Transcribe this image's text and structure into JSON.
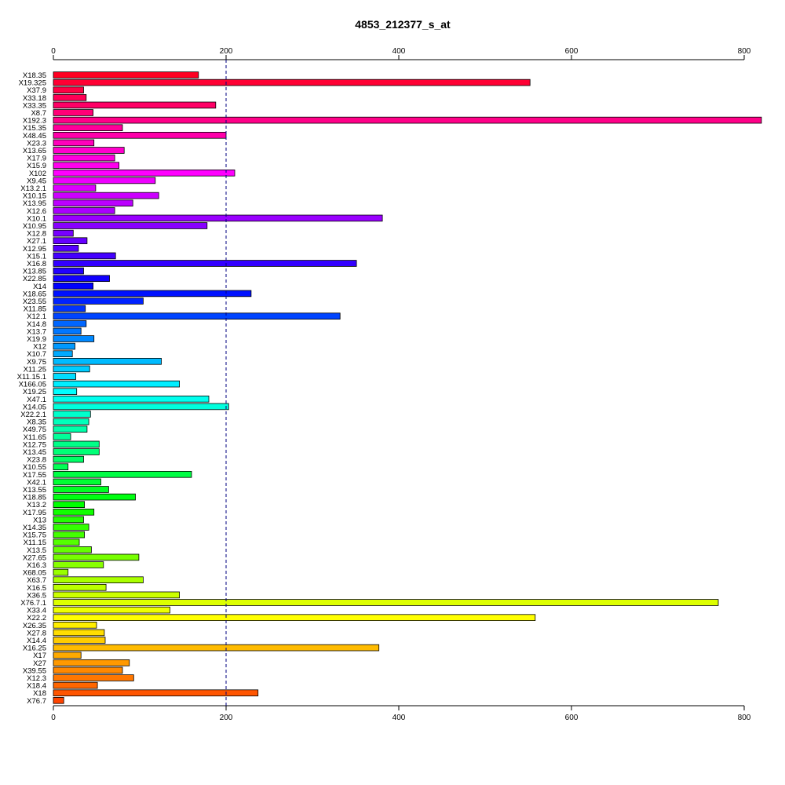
{
  "chart_data": {
    "type": "bar",
    "orientation": "horizontal",
    "title": "4853_212377_s_at",
    "xlabel": "",
    "ylabel": "",
    "xlim": [
      0,
      820
    ],
    "x_ticks": [
      0,
      200,
      400,
      600,
      800
    ],
    "x_tick_labels": [
      "0",
      "200",
      "400",
      "600",
      "800"
    ],
    "axes": [
      "top",
      "bottom"
    ],
    "reference_line": {
      "x": 200,
      "style": "dashed",
      "color": "#000080"
    },
    "categories": [
      "X18.35",
      "X19.325",
      "X37.9",
      "X33.18",
      "X33.35",
      "X8.7",
      "X192.3",
      "X15.35",
      "X48.45",
      "X23.3",
      "X13.65",
      "X17.9",
      "X15.9",
      "X102",
      "X9.45",
      "X13.2.1",
      "X10.15",
      "X13.95",
      "X12.6",
      "X10.1",
      "X10.95",
      "X12.8",
      "X27.1",
      "X12.95",
      "X15.1",
      "X16.8",
      "X13.85",
      "X22.85",
      "X14",
      "X18.65",
      "X23.55",
      "X11.85",
      "X12.1",
      "X14.8",
      "X13.7",
      "X19.9",
      "X12",
      "X10.7",
      "X9.75",
      "X11.25",
      "X11.15.1",
      "X166.05",
      "X19.25",
      "X47.1",
      "X14.05",
      "X22.2.1",
      "X8.35",
      "X49.75",
      "X11.65",
      "X12.75",
      "X13.45",
      "X23.8",
      "X10.55",
      "X17.55",
      "X42.1",
      "X13.55",
      "X18.85",
      "X13.2",
      "X17.95",
      "X13",
      "X14.35",
      "X15.75",
      "X11.15",
      "X13.5",
      "X27.65",
      "X16.3",
      "X68.05",
      "X63.7",
      "X16.5",
      "X36.5",
      "X76.7.1",
      "X33.4",
      "X22.2",
      "X26.35",
      "X27.8",
      "X14.4",
      "X16.25",
      "X17",
      "X27",
      "X39.55",
      "X12.3",
      "X18.4",
      "X18",
      "X76.7"
    ],
    "values": [
      168,
      552,
      35,
      38,
      188,
      46,
      820,
      80,
      200,
      47,
      82,
      71,
      76,
      210,
      118,
      49,
      122,
      92,
      71,
      381,
      178,
      23,
      39,
      29,
      72,
      351,
      35,
      65,
      46,
      229,
      104,
      37,
      332,
      38,
      32,
      47,
      25,
      22,
      125,
      42,
      26,
      146,
      27,
      180,
      203,
      43,
      41,
      39,
      20,
      53,
      53,
      35,
      17,
      160,
      55,
      64,
      95,
      36,
      47,
      35,
      41,
      36,
      30,
      44,
      99,
      58,
      17,
      104,
      61,
      146,
      770,
      135,
      558,
      50,
      59,
      60,
      377,
      32,
      88,
      80,
      93,
      51,
      237,
      12
    ],
    "colors": [
      "#ff0022",
      "#ff0033",
      "#ff0044",
      "#ff0055",
      "#ff0066",
      "#ff0077",
      "#ff0088",
      "#ff0099",
      "#ff00aa",
      "#ff00bb",
      "#ff00cc",
      "#ff00dd",
      "#ff00ee",
      "#ff00ff",
      "#ee00ff",
      "#dd00ff",
      "#cc00ff",
      "#bb00ff",
      "#aa00ff",
      "#9900ff",
      "#8800ff",
      "#7700ff",
      "#6600ff",
      "#5500ff",
      "#4400ff",
      "#3300ff",
      "#2200ff",
      "#1100ff",
      "#0000ff",
      "#0011ff",
      "#0022ff",
      "#0033ff",
      "#0044ff",
      "#0066ff",
      "#0077ff",
      "#0088ff",
      "#0099ff",
      "#00aaff",
      "#00bbff",
      "#00ccff",
      "#00ddff",
      "#00eeff",
      "#00ffff",
      "#00ffee",
      "#00ffdd",
      "#00ffcc",
      "#00ffbb",
      "#00ffaa",
      "#00ff99",
      "#00ff88",
      "#00ff77",
      "#00ff66",
      "#00ff55",
      "#00ff44",
      "#00ff33",
      "#00ff22",
      "#00ff11",
      "#00ff00",
      "#11ff00",
      "#22ff00",
      "#33ff00",
      "#44ff00",
      "#55ff00",
      "#66ff00",
      "#77ff00",
      "#88ff00",
      "#99ff00",
      "#aaff00",
      "#bbff00",
      "#ccff00",
      "#ddff00",
      "#eeff00",
      "#ffff00",
      "#ffee00",
      "#ffdd00",
      "#ffcc00",
      "#ffbb00",
      "#ffaa00",
      "#ff9900",
      "#ff8800",
      "#ff7700",
      "#ff6600",
      "#ff5500",
      "#ff4400"
    ],
    "grid": false,
    "legend": "none"
  }
}
